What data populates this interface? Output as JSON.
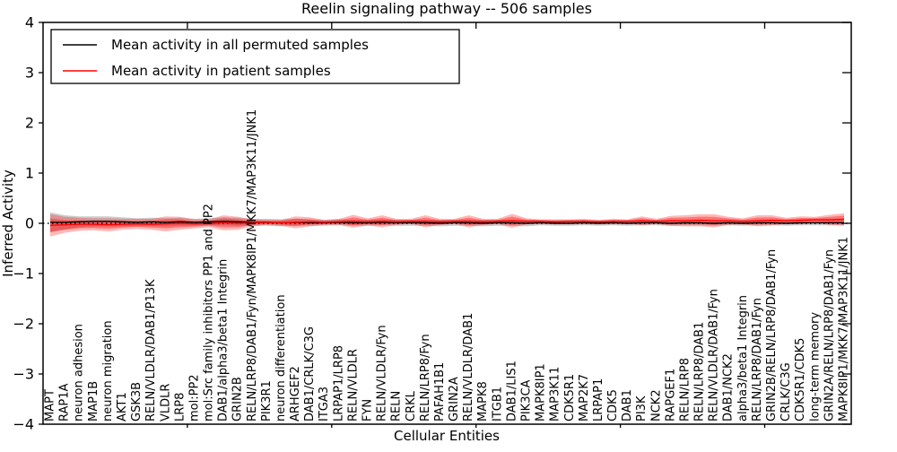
{
  "chart_data": {
    "type": "line",
    "title": "Reelin signaling pathway -- 506 samples",
    "xlabel": "Cellular Entities",
    "ylabel": "Inferred Activity",
    "ylim": [
      -4,
      4
    ],
    "yticks": [
      -4,
      -3,
      -2,
      -1,
      0,
      1,
      2,
      3,
      4
    ],
    "grid": false,
    "zero_line": "dotted",
    "legend_position": "upper left",
    "categories": [
      "MAPT",
      "RAP1A",
      "neuron adhesion",
      "MAP1B",
      "neuron migration",
      "AKT1",
      "GSK3B",
      "RELN/VLDLR/DAB1/P13K",
      "VLDLR",
      "LRP8",
      "mol:PP2",
      "mol:Src family inhibitors PP1 and PP2",
      "DAB1/alpha3/beta1 Integrin",
      "GRIN2B",
      "RELN/LRP8/DAB1/Fyn/MAPK8IP1/MKK7/MAP3K11/JNK1",
      "PIK3R1",
      "neuron differentiation",
      "ARHGEF2",
      "DAB1/CRLK/C3G",
      "ITGA3",
      "LRPAP1/LRP8",
      "RELN/VLDLR",
      "FYN",
      "RELN/VLDLR/Fyn",
      "RELN",
      "CRKL",
      "RELN/LRP8/Fyn",
      "PAFAH1B1",
      "GRIN2A",
      "RELN/VLDLR/DAB1",
      "MAPK8",
      "ITGB1",
      "DAB1/LIS1",
      "PIK3CA",
      "MAPK8IP1",
      "MAP3K11",
      "CDK5R1",
      "MAP2K7",
      "LRPAP1",
      "CDK5",
      "DAB1",
      "PI3K",
      "NCK2",
      "RAPGEF1",
      "RELN/LRP8",
      "RELN/LRP8/DAB1",
      "RELN/VLDLR/DAB1/Fyn",
      "DAB1/NCK2",
      "alpha3/beta1 Integrin",
      "RELN/LRP8/DAB1/Fyn",
      "GRIN2B/RELN/LRP8/DAB1/Fyn",
      "CRLK/C3G",
      "CDK5R1/CDK5",
      "long-term memory",
      "GRIN2A/RELN/LRP8/DAB1/Fyn",
      "MAPK8IP1/MKK7/MAP3K11/JNK1"
    ],
    "series": [
      {
        "name": "Mean activity in all permuted samples",
        "color": "#000000",
        "band_color": "#999999",
        "band_opacity": 0.5,
        "mean": [
          0.02,
          0.02,
          0.03,
          0.04,
          0.04,
          0.03,
          0.02,
          0.03,
          0.02,
          0.03,
          0.02,
          0.03,
          0.04,
          0.03,
          0.02,
          0.02,
          0.01,
          0.02,
          0.01,
          0.01,
          0.02,
          0.01,
          0.01,
          0.02,
          0.01,
          0.01,
          0.01,
          0.0,
          0.01,
          0.01,
          0.0,
          0.01,
          0.01,
          0.0,
          0.01,
          0.0,
          0.0,
          0.01,
          0.0,
          0.01,
          0.0,
          0.01,
          0.01,
          0.0,
          0.01,
          0.01,
          0.0,
          0.01,
          0.0,
          0.01,
          0.01,
          0.0,
          0.01,
          0.01,
          0.01,
          0.01
        ],
        "std": [
          0.2,
          0.14,
          0.11,
          0.1,
          0.1,
          0.09,
          0.08,
          0.08,
          0.08,
          0.08,
          0.07,
          0.07,
          0.08,
          0.08,
          0.07,
          0.07,
          0.07,
          0.07,
          0.06,
          0.06,
          0.06,
          0.06,
          0.06,
          0.06,
          0.06,
          0.06,
          0.06,
          0.06,
          0.06,
          0.06,
          0.06,
          0.06,
          0.06,
          0.06,
          0.05,
          0.05,
          0.05,
          0.05,
          0.05,
          0.05,
          0.05,
          0.05,
          0.05,
          0.05,
          0.05,
          0.05,
          0.05,
          0.05,
          0.05,
          0.05,
          0.05,
          0.05,
          0.05,
          0.05,
          0.05,
          0.06
        ]
      },
      {
        "name": "Mean activity in patient samples",
        "color": "#ff0000",
        "band_color": "#ff0000",
        "band_opacity": 0.28,
        "mean": [
          -0.04,
          -0.03,
          -0.02,
          -0.02,
          -0.03,
          -0.02,
          -0.01,
          -0.02,
          -0.01,
          0.0,
          -0.01,
          0.0,
          0.01,
          0.0,
          0.01,
          0.02,
          0.01,
          0.02,
          0.03,
          0.02,
          0.03,
          0.04,
          0.03,
          0.04,
          0.03,
          0.04,
          0.04,
          0.03,
          0.04,
          0.04,
          0.03,
          0.04,
          0.05,
          0.04,
          0.04,
          0.03,
          0.04,
          0.04,
          0.03,
          0.04,
          0.04,
          0.05,
          0.04,
          0.05,
          0.05,
          0.06,
          0.05,
          0.05,
          0.04,
          0.05,
          0.06,
          0.05,
          0.06,
          0.07,
          0.07,
          0.08
        ],
        "std": [
          0.22,
          0.16,
          0.13,
          0.12,
          0.13,
          0.11,
          0.1,
          0.11,
          0.15,
          0.13,
          0.09,
          0.08,
          0.15,
          0.13,
          0.07,
          0.05,
          0.06,
          0.12,
          0.09,
          0.05,
          0.06,
          0.13,
          0.07,
          0.12,
          0.06,
          0.05,
          0.12,
          0.06,
          0.05,
          0.12,
          0.06,
          0.05,
          0.14,
          0.06,
          0.04,
          0.05,
          0.04,
          0.05,
          0.04,
          0.05,
          0.04,
          0.09,
          0.05,
          0.1,
          0.11,
          0.12,
          0.13,
          0.08,
          0.06,
          0.11,
          0.1,
          0.06,
          0.08,
          0.06,
          0.1,
          0.12
        ]
      }
    ]
  }
}
